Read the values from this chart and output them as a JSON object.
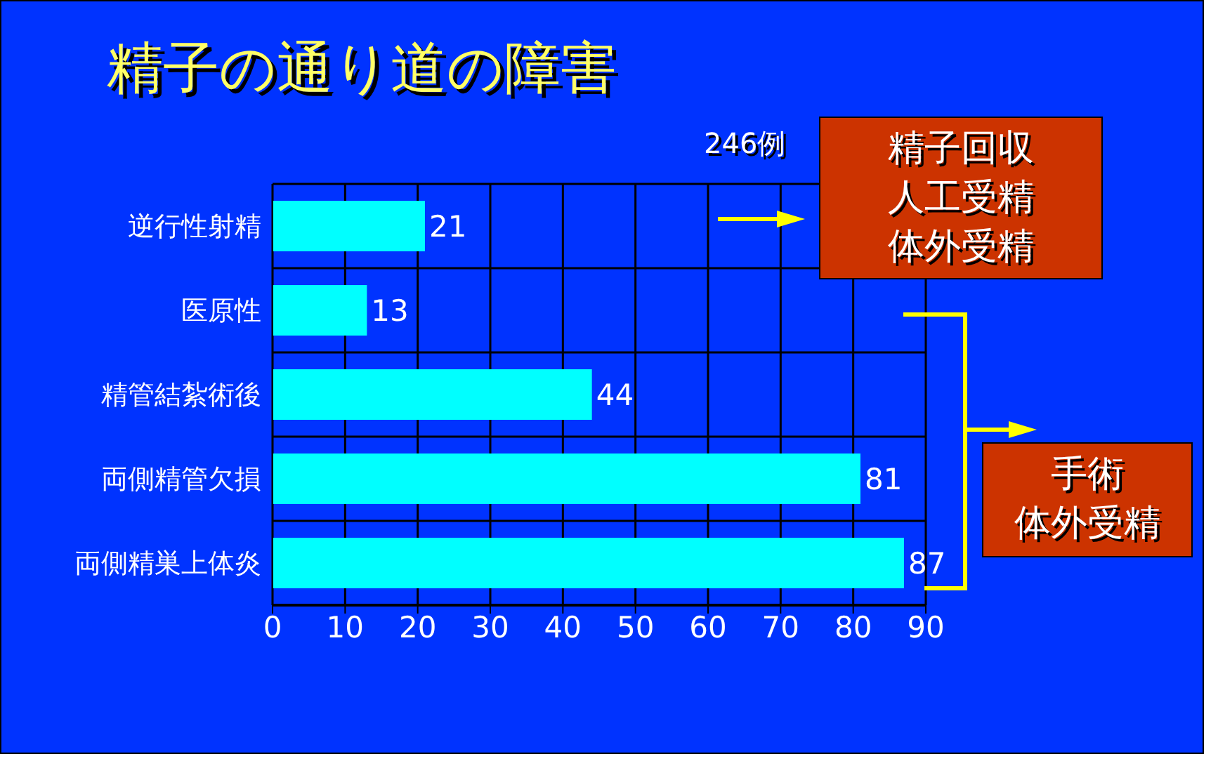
{
  "chart_data": {
    "type": "bar",
    "orientation": "horizontal",
    "title": "精子の通り道の障害",
    "categories": [
      "逆行性射精",
      "医原性",
      "精管結紮術後",
      "両側精管欠損",
      "両側精巣上体炎"
    ],
    "values": [
      21,
      13,
      44,
      81,
      87
    ],
    "color": "#00ffff",
    "data_labels": true,
    "xlim": [
      0,
      90
    ],
    "xticks": [
      0,
      10,
      20,
      30,
      40,
      50,
      60,
      70,
      80,
      90
    ],
    "grid": true,
    "annotations": [
      "246例",
      "精子回収",
      "人工受精",
      "体外受精",
      "手術",
      "体外受精"
    ]
  }
}
